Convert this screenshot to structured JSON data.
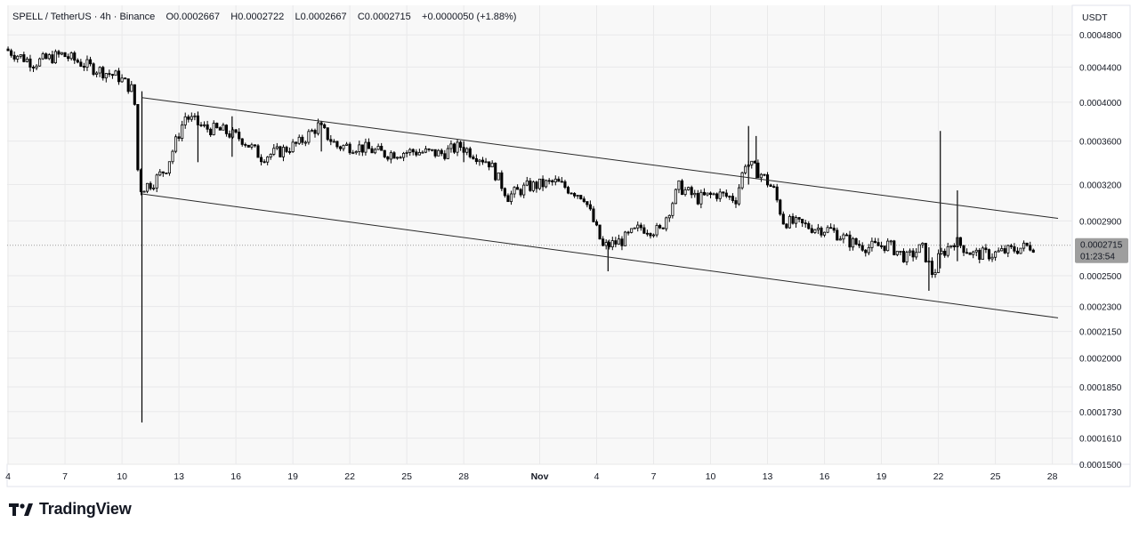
{
  "header": {
    "symbol": "SPELL / TetherUS · 4h · Binance",
    "open": "O0.0002667",
    "high": "H0.0002722",
    "low": "L0.0002667",
    "close": "C0.0002715",
    "change": "+0.0000050 (+1.88%)"
  },
  "currency_label": "USDT",
  "price_tag": {
    "price": "0.0002715",
    "countdown": "01:23:54"
  },
  "brand": {
    "name": "TradingView"
  },
  "colors": {
    "candle": "#000000",
    "grid": "#e9e9ea",
    "background": "#f8f8f8",
    "price_tag": "#9e9e9e"
  },
  "chart_data": {
    "type": "candlestick",
    "y_scale": "log",
    "y_range": [
      0.00015,
      0.00052
    ],
    "y_ticks": [
      "0.0004800",
      "0.0004400",
      "0.0004000",
      "0.0003600",
      "0.0003200",
      "0.0002900",
      "0.0002500",
      "0.0002300",
      "0.0002150",
      "0.0002000",
      "0.0001850",
      "0.0001730",
      "0.0001610",
      "0.0001500"
    ],
    "x_ticks": [
      {
        "label": "4",
        "day": 4
      },
      {
        "label": "7",
        "day": 7
      },
      {
        "label": "10",
        "day": 10
      },
      {
        "label": "13",
        "day": 13
      },
      {
        "label": "16",
        "day": 16
      },
      {
        "label": "19",
        "day": 19
      },
      {
        "label": "22",
        "day": 22
      },
      {
        "label": "25",
        "day": 25
      },
      {
        "label": "28",
        "day": 28
      },
      {
        "label": "Nov",
        "day": 32
      },
      {
        "label": "4",
        "day": 35
      },
      {
        "label": "7",
        "day": 38
      },
      {
        "label": "10",
        "day": 41
      },
      {
        "label": "13",
        "day": 44
      },
      {
        "label": "16",
        "day": 47
      },
      {
        "label": "19",
        "day": 50
      },
      {
        "label": "22",
        "day": 53
      },
      {
        "label": "25",
        "day": 56
      },
      {
        "label": "28",
        "day": 59
      }
    ],
    "x_range": [
      3.95,
      60.05
    ],
    "last_price": 0.0002715,
    "price_path": [
      [
        4.0,
        0.000462
      ],
      [
        5.5,
        0.000445
      ],
      [
        7.0,
        0.000455
      ],
      [
        8.5,
        0.00044
      ],
      [
        10.0,
        0.000428
      ],
      [
        10.8,
        0.000412
      ],
      [
        11.05,
        0.000316
      ],
      [
        11.8,
        0.000322
      ],
      [
        12.5,
        0.000335
      ],
      [
        13.5,
        0.000385
      ],
      [
        14.5,
        0.000373
      ],
      [
        15.5,
        0.00037
      ],
      [
        16.5,
        0.000362
      ],
      [
        17.5,
        0.000345
      ],
      [
        18.5,
        0.00035
      ],
      [
        19.5,
        0.000358
      ],
      [
        20.5,
        0.000375
      ],
      [
        21.5,
        0.000355
      ],
      [
        22.5,
        0.000355
      ],
      [
        24.0,
        0.000348
      ],
      [
        25.5,
        0.00035
      ],
      [
        27.0,
        0.000348
      ],
      [
        28.0,
        0.000355
      ],
      [
        29.5,
        0.00034
      ],
      [
        30.5,
        0.00031
      ],
      [
        31.5,
        0.000318
      ],
      [
        33.0,
        0.000322
      ],
      [
        34.5,
        0.00031
      ],
      [
        35.5,
        0.00027
      ],
      [
        36.5,
        0.000275
      ],
      [
        37.5,
        0.000285
      ],
      [
        38.5,
        0.000282
      ],
      [
        39.5,
        0.000318
      ],
      [
        40.5,
        0.000308
      ],
      [
        41.5,
        0.000312
      ],
      [
        42.5,
        0.000308
      ],
      [
        43.0,
        0.00034
      ],
      [
        43.8,
        0.00033
      ],
      [
        44.5,
        0.000315
      ],
      [
        45.0,
        0.00029
      ],
      [
        46.5,
        0.000285
      ],
      [
        47.5,
        0.000283
      ],
      [
        48.5,
        0.000274
      ],
      [
        49.5,
        0.00027
      ],
      [
        50.5,
        0.000272
      ],
      [
        51.5,
        0.000262
      ],
      [
        52.3,
        0.00027
      ],
      [
        52.9,
        0.00025
      ],
      [
        53.2,
        0.000263
      ],
      [
        54.0,
        0.000275
      ],
      [
        55.0,
        0.000265
      ],
      [
        56.0,
        0.000265
      ],
      [
        57.0,
        0.000268
      ],
      [
        58.0,
        0.000271
      ]
    ],
    "spikes": [
      {
        "day": 11.05,
        "high": 0.000412,
        "low": 0.000168
      },
      {
        "day": 14.0,
        "high": 0.00039,
        "low": 0.00034
      },
      {
        "day": 15.8,
        "high": 0.000385,
        "low": 0.000345
      },
      {
        "day": 20.5,
        "high": 0.00038,
        "low": 0.00035
      },
      {
        "day": 28.0,
        "high": 0.00036,
        "low": 0.00034
      },
      {
        "day": 35.6,
        "high": 0.000275,
        "low": 0.000253
      },
      {
        "day": 43.0,
        "high": 0.000375,
        "low": 0.00032
      },
      {
        "day": 43.4,
        "high": 0.000365,
        "low": 0.000325
      },
      {
        "day": 52.5,
        "high": 0.00027,
        "low": 0.00024
      },
      {
        "day": 53.1,
        "high": 0.00037,
        "low": 0.000255
      },
      {
        "day": 54.0,
        "high": 0.000315,
        "low": 0.00026
      }
    ],
    "trend_lines": [
      {
        "from": [
          11.05,
          0.000405
        ],
        "to": [
          59.3,
          0.000292
        ]
      },
      {
        "from": [
          11.05,
          0.000312
        ],
        "to": [
          59.3,
          0.000223
        ]
      }
    ]
  }
}
